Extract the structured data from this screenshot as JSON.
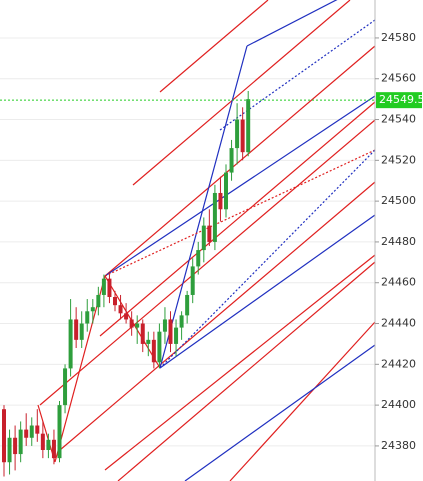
{
  "chart_data": {
    "type": "candlestick",
    "categories": [
      null,
      null,
      null,
      null,
      null,
      null,
      null,
      null,
      null,
      null,
      null,
      null,
      null,
      null,
      null,
      null,
      null,
      null,
      null,
      null,
      null,
      null,
      null,
      null,
      null,
      null,
      null,
      null,
      null,
      null,
      null,
      null,
      null,
      null,
      null,
      null,
      null,
      null,
      null,
      null,
      null,
      null,
      null,
      null,
      null
    ],
    "open": [
      24398,
      24372,
      24384,
      24376,
      24388,
      24384,
      24390,
      24386,
      24378,
      24383,
      24374,
      24400,
      24418,
      24442,
      24432,
      24440,
      24446,
      24448,
      24454,
      24462,
      24453,
      24449,
      24445,
      24442,
      24438,
      24440,
      24430,
      24432,
      24421,
      24436,
      24442,
      24430,
      24438,
      24444,
      24454,
      24468,
      24476,
      24488,
      24480,
      24504,
      24496,
      24514,
      24526,
      24540,
      24524
    ],
    "high": [
      24400,
      24388,
      24390,
      24392,
      24396,
      24394,
      24398,
      24392,
      24386,
      24388,
      24402,
      24420,
      24452,
      24448,
      24446,
      24452,
      24452,
      24458,
      24464,
      24464,
      24456,
      24454,
      24450,
      24446,
      24444,
      24442,
      24436,
      24436,
      24440,
      24448,
      24446,
      24442,
      24446,
      24456,
      24472,
      24480,
      24492,
      24496,
      24508,
      24512,
      24518,
      24530,
      24548,
      24546,
      24554
    ],
    "low": [
      24365,
      24366,
      24368,
      24372,
      24380,
      24380,
      24382,
      24374,
      24374,
      24371,
      24372,
      24396,
      24414,
      24428,
      24428,
      24436,
      24440,
      24444,
      24448,
      24450,
      24446,
      24442,
      24440,
      24434,
      24430,
      24426,
      24424,
      24418,
      24418,
      24430,
      24426,
      24424,
      24432,
      24440,
      24450,
      24464,
      24470,
      24478,
      24476,
      24490,
      24492,
      24510,
      24518,
      24520,
      24522
    ],
    "close": [
      24372,
      24384,
      24376,
      24388,
      24384,
      24390,
      24386,
      24378,
      24383,
      24374,
      24400,
      24418,
      24442,
      24432,
      24440,
      24446,
      24448,
      24454,
      24462,
      24453,
      24449,
      24445,
      24442,
      24438,
      24440,
      24430,
      24432,
      24421,
      24436,
      24442,
      24430,
      24438,
      24444,
      24454,
      24468,
      24476,
      24488,
      24480,
      24504,
      24496,
      24514,
      24526,
      24540,
      24524,
      24550
    ],
    "up_color": "#2e9e3c",
    "down_color": "#c8202c",
    "last_price": 24549.5,
    "last_price_color": "#22cc22",
    "ylim": [
      24362.8,
      24598.6
    ],
    "yticks": [
      24380,
      24400,
      24420,
      24440,
      24460,
      24480,
      24500,
      24520,
      24540,
      24560,
      24580
    ],
    "grid": true
  }
}
